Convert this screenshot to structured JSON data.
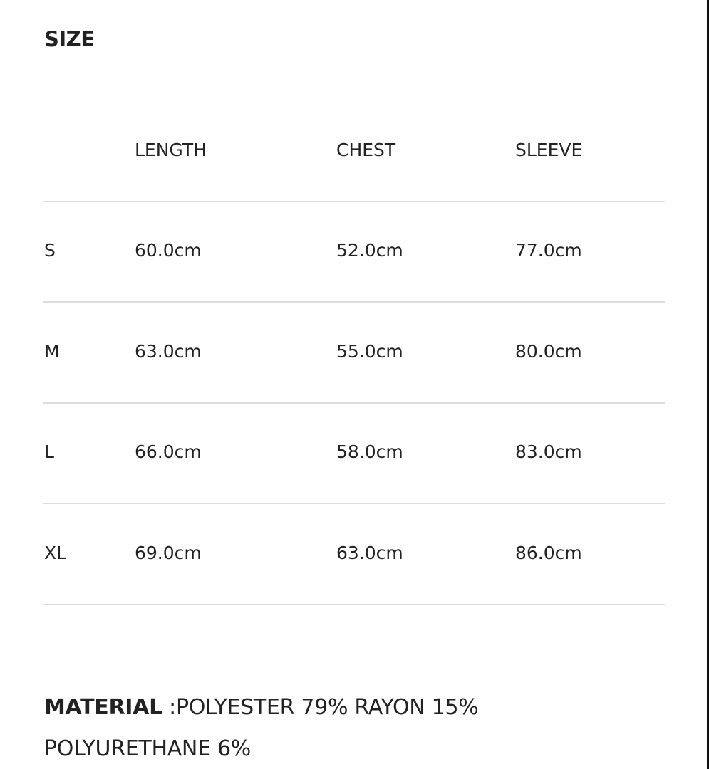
{
  "title": "SIZE",
  "table": {
    "headers": [
      "",
      "LENGTH",
      "CHEST",
      "SLEEVE"
    ],
    "rows": [
      [
        "S",
        "60.0cm",
        "52.0cm",
        "77.0cm"
      ],
      [
        "M",
        "63.0cm",
        "55.0cm",
        "80.0cm"
      ],
      [
        "L",
        "66.0cm",
        "58.0cm",
        "83.0cm"
      ],
      [
        "XL",
        "69.0cm",
        "63.0cm",
        "86.0cm"
      ]
    ]
  },
  "material": {
    "label": "MATERIAL",
    "line1": " :POLYESTER 79% RAYON 15%",
    "line2": "POLYURETHANE 6%"
  }
}
